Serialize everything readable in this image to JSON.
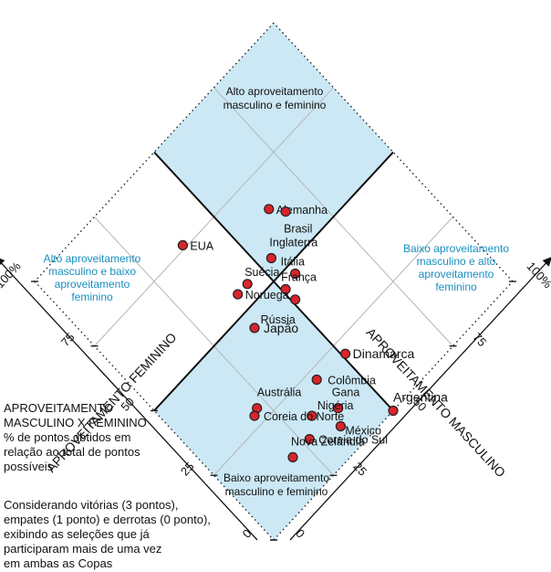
{
  "chart_data": {
    "type": "scatter",
    "axis_female": {
      "label": "APROVEITAMENTO FEMININO",
      "range": [
        0,
        100
      ],
      "ticks": [
        "0",
        "25",
        "50",
        "75",
        "100%"
      ]
    },
    "axis_male": {
      "label": "APROVEITAMENTO MASCULINO",
      "range": [
        0,
        100
      ],
      "ticks": [
        "0",
        "25",
        "50",
        "75",
        "100%"
      ]
    },
    "regions": {
      "top": "Alto aproveitamento\nmasculino e feminino",
      "left": "Alto aproveitamento\nmasculino e baixo\naproveitamento\nfeminino",
      "right": "Baixo aproveitamento\nmasculino e alto\naproveitamento\nfeminino",
      "bottom": "Baixo aproveitamento\nmasculino e feminino"
    },
    "points": [
      {
        "name": "Alemanha",
        "male": 63,
        "female": 65
      },
      {
        "name": "Brasil",
        "male": 66,
        "female": 61
      },
      {
        "name": "Inglaterra",
        "male": 54,
        "female": 55
      },
      {
        "name": "EUA",
        "male": 38,
        "female": 76
      },
      {
        "name": "Itália",
        "male": 56,
        "female": 47
      },
      {
        "name": "França",
        "male": 51,
        "female": 46
      },
      {
        "name": "Suécia",
        "male": 44,
        "female": 55
      },
      {
        "name": "Noruega",
        "male": 40,
        "female": 55
      },
      {
        "name": "Rússia",
        "male": 51,
        "female": 42
      },
      {
        "name": "Japão",
        "male": 37,
        "female": 45
      },
      {
        "name": "Dinamarca",
        "male": 51,
        "female": 21
      },
      {
        "name": "Argentina",
        "male": 50,
        "female": 0
      },
      {
        "name": "Colômbia",
        "male": 40,
        "female": 22
      },
      {
        "name": "Gana",
        "male": 39,
        "female": 12
      },
      {
        "name": "Austrália",
        "male": 22,
        "female": 29
      },
      {
        "name": "Nigéria",
        "male": 32,
        "female": 16
      },
      {
        "name": "México",
        "male": 36,
        "female": 8
      },
      {
        "name": "Coreia do Norte",
        "male": 20,
        "female": 28
      },
      {
        "name": "Coreia do Sul",
        "male": 27,
        "female": 12
      },
      {
        "name": "Nova Zelândia",
        "male": 20,
        "female": 12
      }
    ]
  },
  "caption": {
    "title": "APROVEITAMENTO\nMASCULINO X FEMININO\n% de pontos obtidos em\nrelação ao total de pontos\npossíveis",
    "note": "Considerando vitórias (3 pontos),\nempates (1 ponto) e derrotas (0 ponto),\nexibindo as seleções que já\nparticiparam mais de uma vez\nem ambas as Copas"
  },
  "colors": {
    "region_fill": "#cce8f5",
    "marker_fill": "#d9242b",
    "marker_stroke": "#222222",
    "region_label": "#1a8fc0",
    "text": "#111111"
  }
}
